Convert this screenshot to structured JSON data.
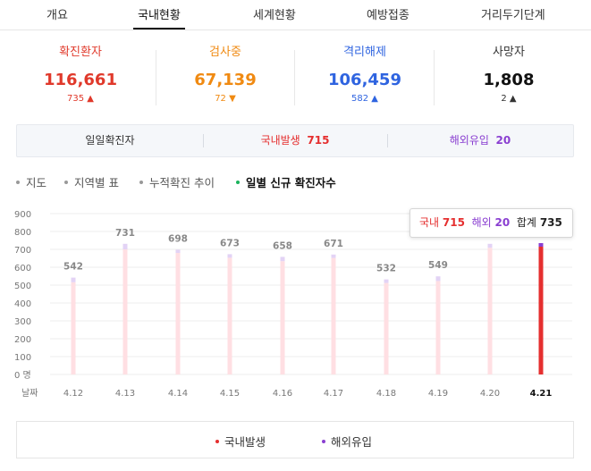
{
  "tabs": [
    {
      "label": "개요",
      "active": false
    },
    {
      "label": "국내현황",
      "active": true
    },
    {
      "label": "세계현황",
      "active": false
    },
    {
      "label": "예방접종",
      "active": false
    },
    {
      "label": "거리두기단계",
      "active": false
    }
  ],
  "stats": [
    {
      "label": "확진환자",
      "value": "116,661",
      "change": "735",
      "arrow": "▲",
      "color": "#e0392b",
      "arrow_color": "#e0392b"
    },
    {
      "label": "검사중",
      "value": "67,139",
      "change": "72",
      "arrow": "▼",
      "color": "#f08a12",
      "arrow_color": "#f08a12"
    },
    {
      "label": "격리해제",
      "value": "106,459",
      "change": "582",
      "arrow": "▲",
      "color": "#2f64e0",
      "arrow_color": "#2f64e0"
    },
    {
      "label": "사망자",
      "value": "1,808",
      "change": "2",
      "arrow": "▲",
      "color": "#111111",
      "arrow_color": "#333333"
    }
  ],
  "daily": {
    "title": "일일확진자",
    "domestic_label": "국내발생",
    "domestic_value": "715",
    "overseas_label": "해외유입",
    "overseas_value": "20"
  },
  "chart_tabs": [
    {
      "label": "지도",
      "active": false
    },
    {
      "label": "지역별 표",
      "active": false
    },
    {
      "label": "누적확진 추이",
      "active": false
    },
    {
      "label": "일별 신규 확진자수",
      "active": true
    }
  ],
  "tooltip": {
    "domestic_label": "국내",
    "domestic_value": "715",
    "overseas_label": "해외",
    "overseas_value": "20",
    "total_label": "합계",
    "total_value": "735"
  },
  "legend": [
    {
      "label": "국내발생",
      "color": "#e52f2f"
    },
    {
      "label": "해외유입",
      "color": "#8a3fd1"
    }
  ],
  "chart_data": {
    "type": "bar",
    "stacked": true,
    "categories": [
      "4.12",
      "4.13",
      "4.14",
      "4.15",
      "4.16",
      "4.17",
      "4.18",
      "4.19",
      "4.20",
      "4.21"
    ],
    "totals": [
      542,
      731,
      698,
      673,
      658,
      671,
      532,
      549,
      731,
      735
    ],
    "series": [
      {
        "name": "국내발생",
        "values": [
          516,
          700,
          680,
          653,
          634,
          652,
          512,
          523,
          709,
          715
        ],
        "color": "#ffdfe3",
        "highlight_color": "#e52f2f"
      },
      {
        "name": "해외유입",
        "values": [
          26,
          31,
          18,
          20,
          24,
          19,
          20,
          26,
          22,
          20
        ],
        "color": "#e3d3f5",
        "highlight_color": "#8a3fd1"
      }
    ],
    "highlight_index": 9,
    "ylim": [
      0,
      900
    ],
    "yticks": [
      "0 명",
      "100",
      "200",
      "300",
      "400",
      "500",
      "600",
      "700",
      "800",
      "900"
    ],
    "xlabel": "날짜",
    "grid": true
  }
}
